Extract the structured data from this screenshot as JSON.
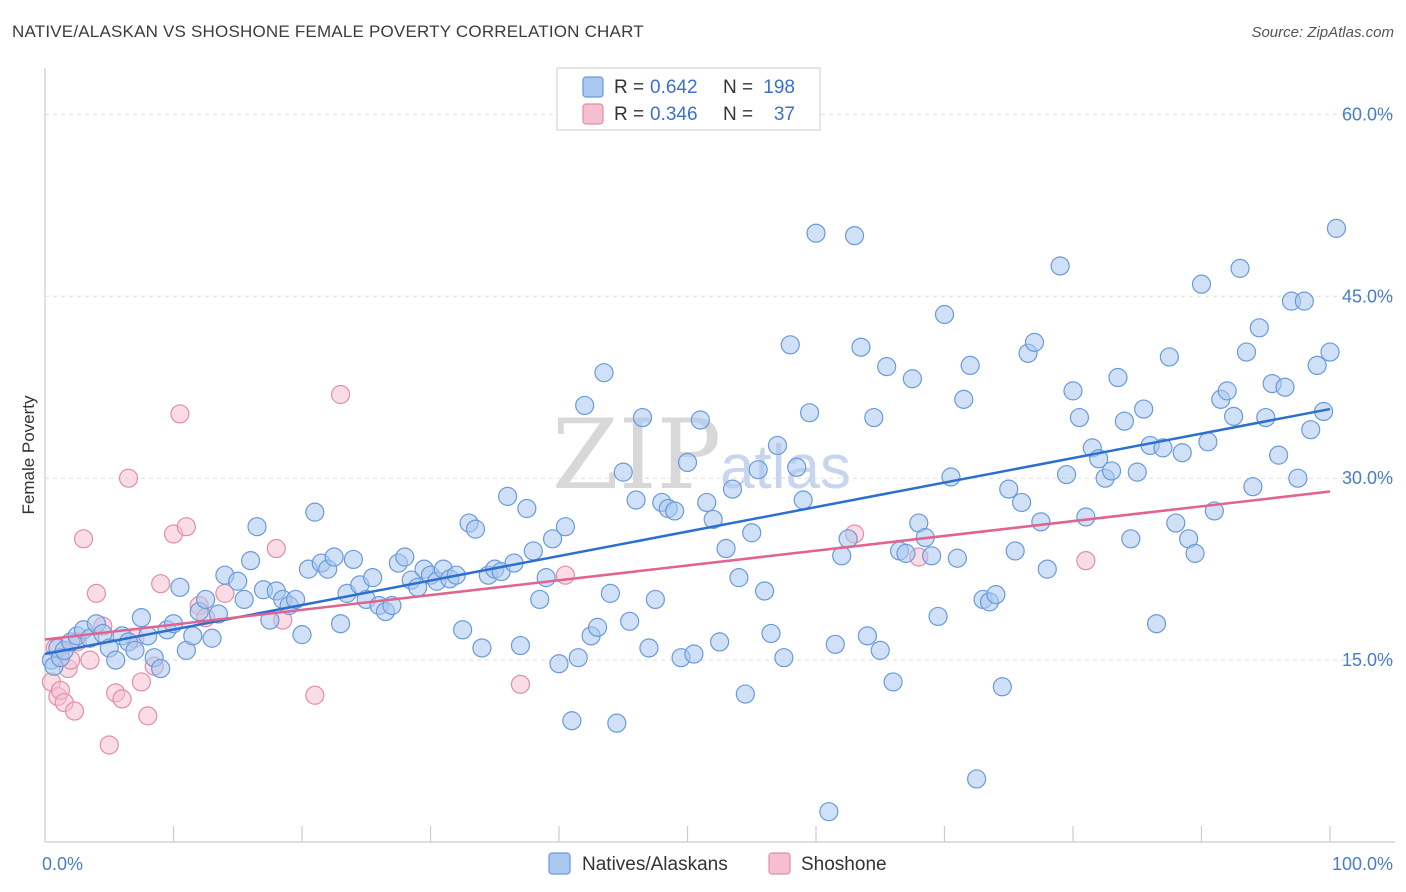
{
  "title": "NATIVE/ALASKAN VS SHOSHONE FEMALE POVERTY CORRELATION CHART",
  "source": "Source: ZipAtlas.com",
  "watermark": {
    "zip": "ZIP",
    "atlas": "atlas"
  },
  "colors": {
    "blue_fill": "#aac8f0",
    "blue_stroke": "#6a9ad8",
    "blue_line": "#2b6fd0",
    "pink_fill": "#f6bfd0",
    "pink_stroke": "#e48cab",
    "pink_line": "#e0648f",
    "grid": "#dddddd",
    "tick_label": "#4a7cc7"
  },
  "legend": {
    "blue_r_label": "R =",
    "blue_r": "0.642",
    "blue_n_label": "N =",
    "blue_n": "198",
    "pink_r_label": "R =",
    "pink_r": "0.346",
    "pink_n_label": "N =",
    "pink_n": "37"
  },
  "chart_data": {
    "type": "scatter",
    "ylabel": "Female Poverty",
    "xlim": [
      0,
      100
    ],
    "ylim": [
      0,
      63
    ],
    "x_tick_labels": [
      {
        "value": 0,
        "label": "0.0%"
      },
      {
        "value": 100,
        "label": "100.0%"
      }
    ],
    "y_tick_labels": [
      {
        "value": 15,
        "label": "15.0%"
      },
      {
        "value": 30,
        "label": "30.0%"
      },
      {
        "value": 45,
        "label": "45.0%"
      },
      {
        "value": 60,
        "label": "60.0%"
      }
    ],
    "series": [
      {
        "name": "Natives/Alaskans",
        "trend": [
          [
            0,
            15.5
          ],
          [
            100,
            35.7
          ]
        ],
        "points": [
          [
            0.5,
            15
          ],
          [
            0.7,
            14.5
          ],
          [
            1,
            16
          ],
          [
            1.2,
            15.2
          ],
          [
            1.5,
            15.8
          ],
          [
            2,
            16.5
          ],
          [
            2.5,
            17
          ],
          [
            3,
            17.5
          ],
          [
            3.5,
            16.8
          ],
          [
            4,
            18
          ],
          [
            4.5,
            17.2
          ],
          [
            5,
            16
          ],
          [
            5.5,
            15
          ],
          [
            6,
            17
          ],
          [
            6.5,
            16.5
          ],
          [
            7,
            15.8
          ],
          [
            7.5,
            18.5
          ],
          [
            8,
            17
          ],
          [
            8.5,
            15.2
          ],
          [
            9,
            14.3
          ],
          [
            9.5,
            17.5
          ],
          [
            10,
            18
          ],
          [
            10.5,
            21
          ],
          [
            11,
            15.8
          ],
          [
            11.5,
            17
          ],
          [
            12,
            19
          ],
          [
            12.5,
            20
          ],
          [
            13,
            16.8
          ],
          [
            13.5,
            18.8
          ],
          [
            14,
            22
          ],
          [
            15,
            21.5
          ],
          [
            15.5,
            20
          ],
          [
            16,
            23.2
          ],
          [
            16.5,
            26
          ],
          [
            17,
            20.8
          ],
          [
            17.5,
            18.3
          ],
          [
            18,
            20.7
          ],
          [
            18.5,
            20
          ],
          [
            19,
            19.5
          ],
          [
            19.5,
            20
          ],
          [
            20,
            17.1
          ],
          [
            20.5,
            22.5
          ],
          [
            21,
            27.2
          ],
          [
            21.5,
            23
          ],
          [
            22,
            22.5
          ],
          [
            22.5,
            23.5
          ],
          [
            23,
            18
          ],
          [
            23.5,
            20.5
          ],
          [
            24,
            23.3
          ],
          [
            24.5,
            21.2
          ],
          [
            25,
            20
          ],
          [
            25.5,
            21.8
          ],
          [
            26,
            19.5
          ],
          [
            26.5,
            19
          ],
          [
            27,
            19.5
          ],
          [
            27.5,
            23
          ],
          [
            28,
            23.5
          ],
          [
            28.5,
            21.6
          ],
          [
            29,
            21
          ],
          [
            29.5,
            22.5
          ],
          [
            30,
            22
          ],
          [
            30.5,
            21.5
          ],
          [
            31,
            22.5
          ],
          [
            31.5,
            21.7
          ],
          [
            32,
            22
          ],
          [
            32.5,
            17.5
          ],
          [
            33,
            26.3
          ],
          [
            33.5,
            25.8
          ],
          [
            34,
            16
          ],
          [
            34.5,
            22
          ],
          [
            35,
            22.5
          ],
          [
            35.5,
            22.3
          ],
          [
            36,
            28.5
          ],
          [
            36.5,
            23
          ],
          [
            37,
            16.2
          ],
          [
            37.5,
            27.5
          ],
          [
            38,
            24
          ],
          [
            38.5,
            20
          ],
          [
            39,
            21.8
          ],
          [
            39.5,
            25
          ],
          [
            40,
            14.7
          ],
          [
            40.5,
            26
          ],
          [
            41,
            10
          ],
          [
            41.5,
            15.2
          ],
          [
            42,
            36
          ],
          [
            42.5,
            17
          ],
          [
            43,
            17.7
          ],
          [
            43.5,
            38.7
          ],
          [
            44,
            20.5
          ],
          [
            44.5,
            9.8
          ],
          [
            45,
            30.5
          ],
          [
            45.5,
            18.2
          ],
          [
            46,
            28.2
          ],
          [
            46.5,
            35
          ],
          [
            47,
            16
          ],
          [
            47.5,
            20
          ],
          [
            48,
            28
          ],
          [
            48.5,
            27.5
          ],
          [
            49,
            27.3
          ],
          [
            49.5,
            15.2
          ],
          [
            50,
            31.3
          ],
          [
            50.5,
            15.5
          ],
          [
            51,
            34.8
          ],
          [
            51.5,
            28
          ],
          [
            52,
            26.6
          ],
          [
            52.5,
            16.5
          ],
          [
            53,
            24.2
          ],
          [
            53.5,
            29.1
          ],
          [
            54,
            21.8
          ],
          [
            54.5,
            12.2
          ],
          [
            55,
            25.5
          ],
          [
            55.5,
            30.7
          ],
          [
            56,
            20.7
          ],
          [
            56.5,
            17.2
          ],
          [
            57,
            32.7
          ],
          [
            57.5,
            15.2
          ],
          [
            58,
            41
          ],
          [
            58.5,
            30.9
          ],
          [
            59,
            28.2
          ],
          [
            59.5,
            35.4
          ],
          [
            60,
            50.2
          ],
          [
            61,
            2.5
          ],
          [
            61.5,
            16.3
          ],
          [
            62,
            23.6
          ],
          [
            62.5,
            25
          ],
          [
            63,
            50
          ],
          [
            63.5,
            40.8
          ],
          [
            64,
            17
          ],
          [
            64.5,
            35
          ],
          [
            65,
            15.8
          ],
          [
            65.5,
            39.2
          ],
          [
            66,
            13.2
          ],
          [
            66.5,
            24
          ],
          [
            67,
            23.8
          ],
          [
            67.5,
            38.2
          ],
          [
            68,
            26.3
          ],
          [
            68.5,
            25.1
          ],
          [
            69,
            23.6
          ],
          [
            69.5,
            18.6
          ],
          [
            70,
            43.5
          ],
          [
            70.5,
            30.1
          ],
          [
            71,
            23.4
          ],
          [
            71.5,
            36.5
          ],
          [
            72,
            39.3
          ],
          [
            72.5,
            5.2
          ],
          [
            73,
            20
          ],
          [
            73.5,
            19.8
          ],
          [
            74,
            20.4
          ],
          [
            74.5,
            12.8
          ],
          [
            75,
            29.1
          ],
          [
            75.5,
            24
          ],
          [
            76,
            28
          ],
          [
            76.5,
            40.3
          ],
          [
            77,
            41.2
          ],
          [
            77.5,
            26.4
          ],
          [
            78,
            22.5
          ],
          [
            79,
            47.5
          ],
          [
            79.5,
            30.3
          ],
          [
            80,
            37.2
          ],
          [
            80.5,
            35
          ],
          [
            81,
            26.8
          ],
          [
            81.5,
            32.5
          ],
          [
            82,
            31.6
          ],
          [
            82.5,
            30
          ],
          [
            83,
            30.6
          ],
          [
            83.5,
            38.3
          ],
          [
            84,
            34.7
          ],
          [
            84.5,
            25
          ],
          [
            85,
            30.5
          ],
          [
            85.5,
            35.7
          ],
          [
            86,
            32.7
          ],
          [
            86.5,
            18
          ],
          [
            87,
            32.5
          ],
          [
            87.5,
            40
          ],
          [
            88,
            26.3
          ],
          [
            88.5,
            32.1
          ],
          [
            89,
            25
          ],
          [
            89.5,
            23.8
          ],
          [
            90,
            46
          ],
          [
            90.5,
            33
          ],
          [
            91,
            27.3
          ],
          [
            91.5,
            36.5
          ],
          [
            92,
            37.2
          ],
          [
            92.5,
            35.1
          ],
          [
            93,
            47.3
          ],
          [
            93.5,
            40.4
          ],
          [
            94,
            29.3
          ],
          [
            94.5,
            42.4
          ],
          [
            95,
            35
          ],
          [
            95.5,
            37.8
          ],
          [
            96,
            31.9
          ],
          [
            96.5,
            37.5
          ],
          [
            97,
            44.6
          ],
          [
            97.5,
            30
          ],
          [
            98,
            44.6
          ],
          [
            98.5,
            34
          ],
          [
            99,
            39.3
          ],
          [
            99.5,
            35.5
          ],
          [
            100,
            40.4
          ],
          [
            100.5,
            50.6
          ]
        ]
      },
      {
        "name": "Shoshone",
        "trend": [
          [
            0,
            16.7
          ],
          [
            100,
            28.9
          ]
        ],
        "points": [
          [
            0.5,
            13.2
          ],
          [
            0.8,
            16
          ],
          [
            1,
            12
          ],
          [
            1.2,
            12.5
          ],
          [
            1.5,
            11.5
          ],
          [
            1.8,
            14.3
          ],
          [
            2,
            15
          ],
          [
            2.3,
            10.8
          ],
          [
            2.5,
            16.5
          ],
          [
            3,
            25
          ],
          [
            3.5,
            15
          ],
          [
            4,
            20.5
          ],
          [
            4.5,
            17.8
          ],
          [
            5,
            8
          ],
          [
            5.5,
            12.3
          ],
          [
            6,
            11.8
          ],
          [
            6.5,
            30
          ],
          [
            7,
            16.8
          ],
          [
            7.5,
            13.2
          ],
          [
            8,
            10.4
          ],
          [
            8.5,
            14.5
          ],
          [
            9,
            21.3
          ],
          [
            10,
            25.4
          ],
          [
            10.5,
            35.3
          ],
          [
            11,
            26
          ],
          [
            12,
            19.5
          ],
          [
            12.5,
            18.5
          ],
          [
            14,
            20.5
          ],
          [
            18,
            24.2
          ],
          [
            18.5,
            18.3
          ],
          [
            21,
            12.1
          ],
          [
            23,
            36.9
          ],
          [
            37,
            13
          ],
          [
            40.5,
            22
          ],
          [
            63,
            25.4
          ],
          [
            68,
            23.5
          ],
          [
            81,
            23.2
          ]
        ]
      }
    ]
  },
  "bottom_legend": {
    "blue": "Natives/Alaskans",
    "pink": "Shoshone"
  }
}
